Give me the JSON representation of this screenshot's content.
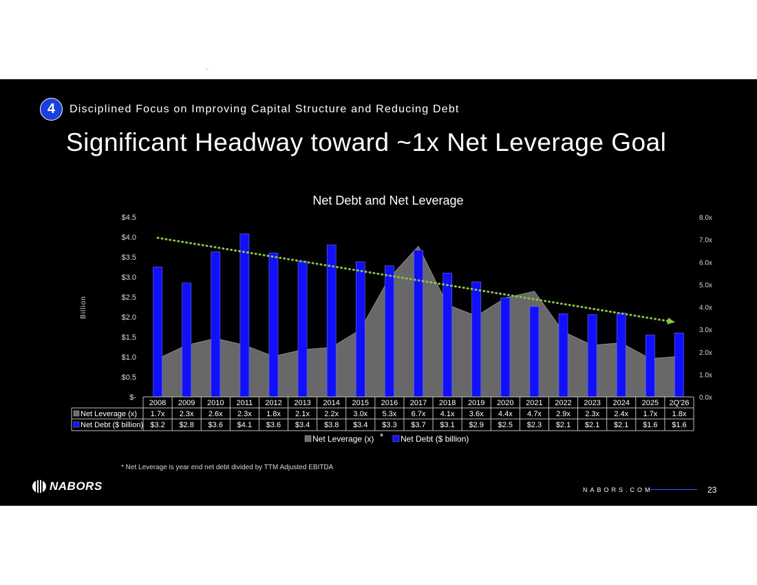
{
  "header": {
    "section_number": "4",
    "section_title": "Disciplined Focus on Improving Capital Structure and Reducing Debt",
    "title": "Significant Headway toward ~1x Net Leverage Goal"
  },
  "chart_data": {
    "type": "bar",
    "title": "Net Debt and Net Leverage",
    "ylabel": "Billion",
    "ylim": [
      0,
      4.5
    ],
    "y2lim": [
      0,
      8
    ],
    "y_ticks": [
      "$-",
      "$0.5",
      "$1.0",
      "$1.5",
      "$2.0",
      "$2.5",
      "$3.0",
      "$3.5",
      "$4.0",
      "$4.5"
    ],
    "y2_ticks": [
      "0.0x",
      "1.0x",
      "2.0x",
      "3.0x",
      "4.0x",
      "5.0x",
      "6.0x",
      "7.0x",
      "8.0x"
    ],
    "categories": [
      "2008",
      "2009",
      "2010",
      "2011",
      "2012",
      "2013",
      "2014",
      "2015",
      "2016",
      "2017",
      "2018",
      "2019",
      "2020",
      "2021",
      "2022",
      "2023",
      "2024",
      "2025",
      "2Q'26"
    ],
    "series": [
      {
        "name": "Net Leverage (x)",
        "kind": "area",
        "axis": "right",
        "color": "#6e6e6e",
        "values": [
          1.7,
          2.3,
          2.6,
          2.3,
          1.8,
          2.1,
          2.2,
          3.0,
          5.3,
          6.7,
          4.1,
          3.6,
          4.4,
          4.7,
          2.9,
          2.3,
          2.4,
          1.7,
          1.8
        ],
        "labels": [
          "1.7x",
          "2.3x",
          "2.6x",
          "2.3x",
          "1.8x",
          "2.1x",
          "2.2x",
          "3.0x",
          "5.3x",
          "6.7x",
          "4.1x",
          "3.6x",
          "4.4x",
          "4.7x",
          "2.9x",
          "2.3x",
          "2.4x",
          "1.7x",
          "1.8x"
        ]
      },
      {
        "name": "Net Debt ($ billion)",
        "kind": "bar",
        "axis": "left",
        "color": "#1010ff",
        "values": [
          3.25,
          2.85,
          3.63,
          4.08,
          3.6,
          3.4,
          3.8,
          3.38,
          3.28,
          3.67,
          3.1,
          2.88,
          2.48,
          2.26,
          2.08,
          2.06,
          2.1,
          1.55,
          1.6
        ],
        "labels": [
          "$3.2",
          "$2.8",
          "$3.6",
          "$4.1",
          "$3.6",
          "$3.4",
          "$3.8",
          "$3.4",
          "$3.3",
          "$3.7",
          "$3.1",
          "$2.9",
          "$2.5",
          "$2.3",
          "$2.1",
          "$2.1",
          "$2.1",
          "$1.6",
          "$1.6"
        ]
      }
    ],
    "trendline": {
      "color": "#8dc63f",
      "start": 3.98,
      "end": 1.88
    },
    "legend": "bottom",
    "legend_marker": "*"
  },
  "footnote": "* Net Leverage is year end net debt divided by TTM Adjusted EBITDA",
  "footer": {
    "logo": "NABORS",
    "site": "NABORS.COM",
    "page": "23"
  }
}
